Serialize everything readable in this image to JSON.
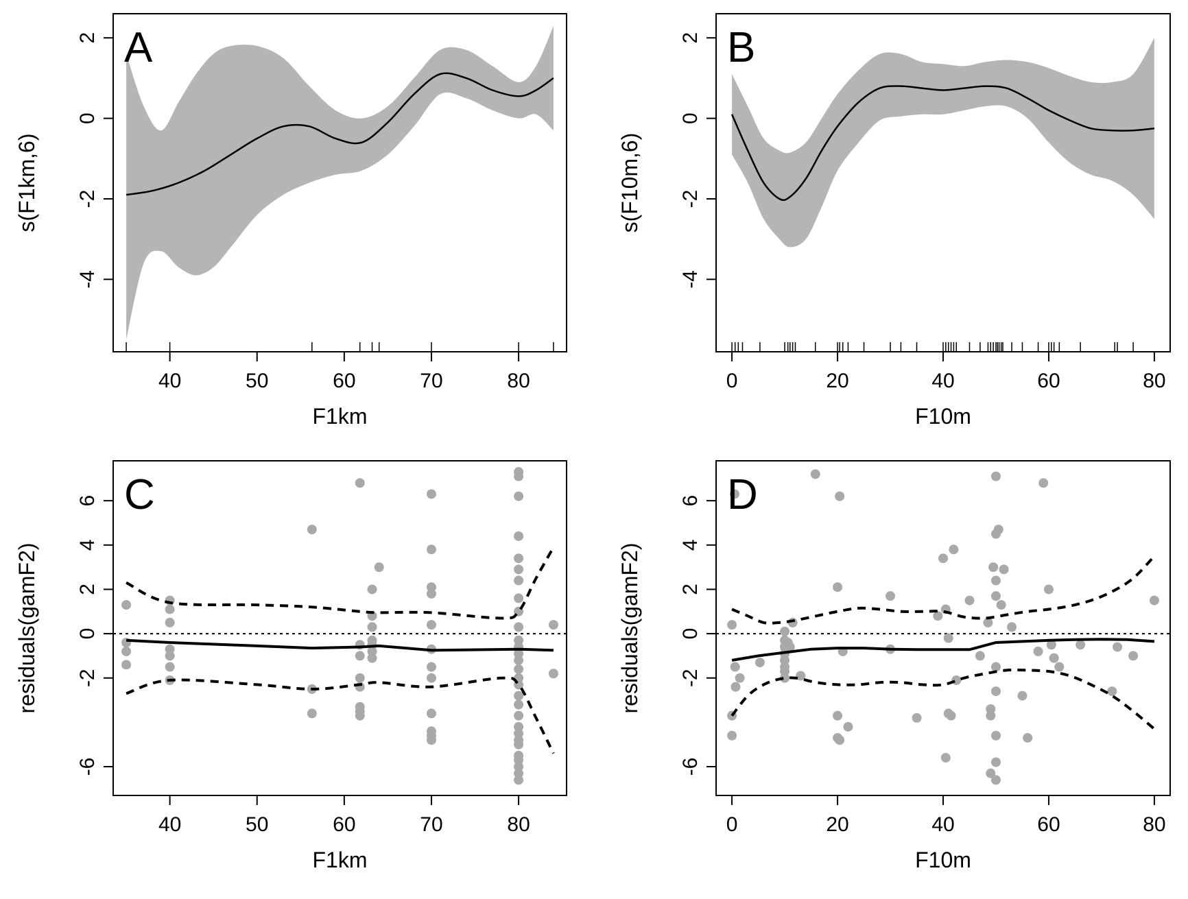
{
  "chart_data": [
    {
      "type": "line",
      "panel_label": "A",
      "xlabel": "F1km",
      "ylabel": "s(F1km,6)",
      "xlim": [
        33.5,
        85.5
      ],
      "ylim": [
        -5.8,
        2.6
      ],
      "xticks": [
        40,
        50,
        60,
        70,
        80
      ],
      "yticks": [
        -4,
        -2,
        0,
        2
      ],
      "series": [
        {
          "role": "smooth",
          "x": [
            35,
            38,
            41,
            44,
            47,
            50,
            53,
            56,
            59,
            62,
            65,
            68,
            71,
            74,
            77,
            80,
            82,
            84
          ],
          "y": [
            -1.9,
            -1.8,
            -1.6,
            -1.3,
            -0.9,
            -0.5,
            -0.2,
            -0.2,
            -0.5,
            -0.6,
            -0.1,
            0.6,
            1.1,
            1.0,
            0.7,
            0.55,
            0.7,
            1.0
          ]
        },
        {
          "role": "upper-band",
          "x": [
            35,
            37,
            39,
            41,
            43,
            45,
            47,
            50,
            53,
            56,
            59,
            62,
            65,
            68,
            71,
            74,
            77,
            80,
            82,
            84
          ],
          "y": [
            1.6,
            0.3,
            -0.3,
            0.4,
            1.1,
            1.6,
            1.8,
            1.8,
            1.5,
            0.8,
            0.2,
            0.0,
            0.3,
            1.0,
            1.7,
            1.7,
            1.3,
            0.9,
            1.3,
            2.3
          ]
        },
        {
          "role": "lower-band",
          "x": [
            35,
            37,
            39,
            41,
            43,
            45,
            47,
            50,
            53,
            56,
            59,
            62,
            65,
            68,
            71,
            74,
            77,
            80,
            82,
            84
          ],
          "y": [
            -5.5,
            -3.6,
            -3.3,
            -3.7,
            -3.9,
            -3.7,
            -3.2,
            -2.4,
            -1.9,
            -1.6,
            -1.4,
            -1.3,
            -0.9,
            -0.2,
            0.6,
            0.5,
            0.2,
            0.0,
            0.1,
            -0.3
          ]
        }
      ],
      "rug": [
        35,
        40,
        56.3,
        61.8,
        63.2,
        64.0,
        70,
        80,
        84
      ]
    },
    {
      "type": "line",
      "panel_label": "B",
      "xlabel": "F10m",
      "ylabel": "s(F10m,6)",
      "xlim": [
        -3,
        83
      ],
      "ylim": [
        -5.8,
        2.6
      ],
      "xticks": [
        0,
        20,
        40,
        60,
        80
      ],
      "yticks": [
        -4,
        -2,
        0,
        2
      ],
      "series": [
        {
          "role": "smooth",
          "x": [
            0,
            3,
            6,
            9,
            11,
            14,
            17,
            20,
            24,
            28,
            32,
            36,
            40,
            44,
            48,
            52,
            56,
            60,
            64,
            68,
            72,
            76,
            80
          ],
          "y": [
            0.1,
            -0.8,
            -1.6,
            -2.0,
            -1.95,
            -1.5,
            -0.8,
            -0.2,
            0.4,
            0.75,
            0.8,
            0.75,
            0.7,
            0.75,
            0.8,
            0.75,
            0.5,
            0.2,
            -0.05,
            -0.25,
            -0.3,
            -0.3,
            -0.25
          ]
        },
        {
          "role": "upper-band",
          "x": [
            0,
            3,
            6,
            9,
            11,
            14,
            17,
            20,
            24,
            28,
            32,
            36,
            40,
            44,
            48,
            52,
            56,
            60,
            64,
            68,
            72,
            76,
            80
          ],
          "y": [
            1.1,
            0.3,
            -0.5,
            -0.8,
            -0.85,
            -0.6,
            0.0,
            0.6,
            1.2,
            1.6,
            1.6,
            1.4,
            1.35,
            1.3,
            1.4,
            1.45,
            1.4,
            1.25,
            1.05,
            0.9,
            0.9,
            1.1,
            2.0
          ]
        },
        {
          "role": "lower-band",
          "x": [
            0,
            3,
            6,
            9,
            11,
            14,
            17,
            20,
            24,
            28,
            32,
            36,
            40,
            44,
            48,
            52,
            56,
            60,
            64,
            68,
            72,
            76,
            80
          ],
          "y": [
            -0.9,
            -1.6,
            -2.5,
            -3.0,
            -3.2,
            -3.0,
            -2.2,
            -1.3,
            -0.6,
            -0.05,
            0.05,
            0.1,
            0.1,
            0.2,
            0.3,
            0.3,
            0.0,
            -0.6,
            -1.1,
            -1.4,
            -1.55,
            -1.9,
            -2.5
          ]
        }
      ],
      "rug": [
        0,
        0.6,
        1.2,
        2,
        5.3,
        10,
        10.6,
        11,
        11.5,
        12,
        15.8,
        20,
        20.4,
        21,
        22,
        25,
        30,
        32,
        35,
        40,
        40.5,
        41,
        41.5,
        42,
        42.5,
        45,
        47,
        48.5,
        49,
        49.5,
        50,
        50.3,
        50.6,
        51,
        51.3,
        53,
        55,
        58,
        60,
        60.5,
        61,
        62,
        66,
        72.5,
        73,
        76
      ]
    },
    {
      "type": "scatter",
      "panel_label": "C",
      "xlabel": "F1km",
      "ylabel": "residuals(gamF2)",
      "xlim": [
        33.5,
        85.5
      ],
      "ylim": [
        -7.3,
        7.8
      ],
      "xticks": [
        40,
        50,
        60,
        70,
        80
      ],
      "yticks": [
        -6,
        -2,
        0,
        2,
        4,
        6
      ],
      "points": [
        [
          35,
          1.3
        ],
        [
          35,
          -0.4
        ],
        [
          35,
          -0.8
        ],
        [
          35,
          -1.4
        ],
        [
          40,
          1.5
        ],
        [
          40,
          1.1
        ],
        [
          40,
          0.5
        ],
        [
          40,
          -0.7
        ],
        [
          40,
          -1.0
        ],
        [
          40,
          -1.5
        ],
        [
          40,
          -2.1
        ],
        [
          56.3,
          4.7
        ],
        [
          56.3,
          -2.5
        ],
        [
          56.3,
          -3.6
        ],
        [
          61.8,
          6.8
        ],
        [
          61.8,
          -0.5
        ],
        [
          61.8,
          -1.0
        ],
        [
          61.8,
          -2.0
        ],
        [
          61.8,
          -2.4
        ],
        [
          61.8,
          -3.3
        ],
        [
          61.8,
          -3.5
        ],
        [
          61.8,
          -3.7
        ],
        [
          63.2,
          2.0
        ],
        [
          63.2,
          0.8
        ],
        [
          63.2,
          0.3
        ],
        [
          63.2,
          -0.3
        ],
        [
          63.2,
          -0.5
        ],
        [
          63.2,
          -0.8
        ],
        [
          63.2,
          -1.1
        ],
        [
          64.0,
          3.0
        ],
        [
          70,
          6.3
        ],
        [
          70,
          3.8
        ],
        [
          70,
          2.1
        ],
        [
          70,
          1.8
        ],
        [
          70,
          0.4
        ],
        [
          70,
          -0.7
        ],
        [
          70,
          -1.5
        ],
        [
          70,
          -2.0
        ],
        [
          70,
          -3.6
        ],
        [
          70,
          -4.4
        ],
        [
          70,
          -4.6
        ],
        [
          70,
          -4.8
        ],
        [
          80,
          7.3
        ],
        [
          80,
          7.1
        ],
        [
          80,
          6.2
        ],
        [
          80,
          4.4
        ],
        [
          80,
          3.4
        ],
        [
          80,
          2.9
        ],
        [
          80,
          2.4
        ],
        [
          80,
          1.6
        ],
        [
          80,
          1.0
        ],
        [
          80,
          0.3
        ],
        [
          80,
          -0.3
        ],
        [
          80,
          -0.6
        ],
        [
          80,
          -0.9
        ],
        [
          80,
          -1.2
        ],
        [
          80,
          -1.6
        ],
        [
          80,
          -2.0
        ],
        [
          80,
          -2.3
        ],
        [
          80,
          -2.8
        ],
        [
          80,
          -3.2
        ],
        [
          80,
          -3.7
        ],
        [
          80,
          -4.2
        ],
        [
          80,
          -4.5
        ],
        [
          80,
          -4.8
        ],
        [
          80,
          -5.0
        ],
        [
          80,
          -5.5
        ],
        [
          80,
          -5.7
        ],
        [
          80,
          -6.0
        ],
        [
          80,
          -6.3
        ],
        [
          80,
          -6.6
        ],
        [
          84,
          0.4
        ],
        [
          84,
          -1.8
        ]
      ],
      "series": [
        {
          "role": "fit",
          "style": "solid",
          "x": [
            35,
            40,
            50,
            56.3,
            61.8,
            64,
            70,
            80,
            84
          ],
          "y": [
            -0.3,
            -0.4,
            -0.55,
            -0.65,
            -0.6,
            -0.55,
            -0.75,
            -0.7,
            -0.75
          ]
        },
        {
          "role": "upper-ci",
          "style": "dashed",
          "x": [
            35,
            40,
            50,
            56.3,
            61.8,
            64,
            70,
            78,
            80,
            82,
            84
          ],
          "y": [
            2.3,
            1.4,
            1.3,
            1.2,
            1.0,
            0.95,
            0.95,
            0.7,
            1.0,
            2.5,
            3.9
          ]
        },
        {
          "role": "lower-ci",
          "style": "dashed",
          "x": [
            35,
            40,
            50,
            56.3,
            61.8,
            64,
            70,
            78,
            80,
            82,
            84
          ],
          "y": [
            -2.7,
            -2.1,
            -2.3,
            -2.5,
            -2.3,
            -2.2,
            -2.4,
            -2.0,
            -2.3,
            -3.8,
            -5.4
          ]
        }
      ],
      "reference_line": 0
    },
    {
      "type": "scatter",
      "panel_label": "D",
      "xlabel": "F10m",
      "ylabel": "residuals(gamF2)",
      "xlim": [
        -3,
        83
      ],
      "ylim": [
        -7.3,
        7.8
      ],
      "xticks": [
        0,
        20,
        40,
        60,
        80
      ],
      "yticks": [
        -6,
        -2,
        0,
        2,
        4,
        6
      ],
      "points": [
        [
          0,
          0.4
        ],
        [
          0,
          -3.7
        ],
        [
          0,
          -4.6
        ],
        [
          0.5,
          6.3
        ],
        [
          0.6,
          -1.5
        ],
        [
          0.7,
          -2.4
        ],
        [
          1.5,
          -2.0
        ],
        [
          5.3,
          -1.3
        ],
        [
          10,
          0.1
        ],
        [
          10,
          -0.3
        ],
        [
          10,
          -0.6
        ],
        [
          10,
          -0.9
        ],
        [
          10,
          -1.2
        ],
        [
          10,
          -1.5
        ],
        [
          10,
          -1.7
        ],
        [
          10,
          -2.0
        ],
        [
          10.6,
          -0.4
        ],
        [
          11,
          -0.6
        ],
        [
          11.5,
          0.5
        ],
        [
          13,
          -1.9
        ],
        [
          15.8,
          7.2
        ],
        [
          20,
          2.1
        ],
        [
          20,
          -3.7
        ],
        [
          20,
          -4.7
        ],
        [
          20.4,
          6.2
        ],
        [
          20.4,
          -4.8
        ],
        [
          21,
          -0.8
        ],
        [
          22,
          -4.2
        ],
        [
          30,
          1.7
        ],
        [
          30,
          -0.7
        ],
        [
          35,
          -3.8
        ],
        [
          39,
          0.8
        ],
        [
          40,
          3.4
        ],
        [
          40.5,
          1.1
        ],
        [
          40.5,
          -5.6
        ],
        [
          41,
          -0.2
        ],
        [
          41,
          -3.6
        ],
        [
          41.5,
          -3.7
        ],
        [
          42,
          3.8
        ],
        [
          42.5,
          -2.1
        ],
        [
          45,
          1.5
        ],
        [
          47,
          -1.0
        ],
        [
          48.5,
          0.5
        ],
        [
          49,
          -3.4
        ],
        [
          49,
          -3.7
        ],
        [
          49,
          -6.3
        ],
        [
          49.5,
          3.0
        ],
        [
          50,
          7.1
        ],
        [
          50,
          4.5
        ],
        [
          50,
          2.4
        ],
        [
          50,
          1.7
        ],
        [
          50,
          -1.5
        ],
        [
          50,
          -2.6
        ],
        [
          50,
          -4.6
        ],
        [
          50,
          -5.8
        ],
        [
          50,
          -6.6
        ],
        [
          50.5,
          4.7
        ],
        [
          51,
          1.3
        ],
        [
          51.5,
          2.9
        ],
        [
          53,
          0.3
        ],
        [
          55,
          -2.8
        ],
        [
          56,
          -4.7
        ],
        [
          58,
          -0.8
        ],
        [
          59,
          6.8
        ],
        [
          60,
          2.0
        ],
        [
          60.5,
          -0.5
        ],
        [
          61,
          -1.1
        ],
        [
          62,
          -1.5
        ],
        [
          66,
          -0.5
        ],
        [
          72,
          -2.6
        ],
        [
          73,
          -0.6
        ],
        [
          76,
          -1.0
        ],
        [
          80,
          1.5
        ]
      ],
      "series": [
        {
          "role": "fit",
          "style": "solid",
          "x": [
            0,
            5,
            10,
            15,
            20,
            25,
            30,
            35,
            40,
            45,
            50,
            55,
            60,
            65,
            70,
            75,
            80
          ],
          "y": [
            -1.2,
            -1.0,
            -0.85,
            -0.7,
            -0.65,
            -0.65,
            -0.7,
            -0.72,
            -0.72,
            -0.72,
            -0.4,
            -0.35,
            -0.3,
            -0.27,
            -0.25,
            -0.27,
            -0.35
          ]
        },
        {
          "role": "upper-ci",
          "style": "dashed",
          "x": [
            0,
            3,
            6,
            9,
            12,
            16,
            20,
            24,
            28,
            32,
            36,
            40,
            44,
            48,
            52,
            56,
            60,
            64,
            68,
            72,
            76,
            80
          ],
          "y": [
            1.1,
            0.8,
            0.5,
            0.5,
            0.6,
            0.8,
            1.0,
            1.15,
            1.1,
            1.0,
            1.0,
            1.0,
            0.75,
            0.7,
            0.85,
            1.0,
            1.1,
            1.25,
            1.5,
            1.9,
            2.5,
            3.5
          ]
        },
        {
          "role": "lower-ci",
          "style": "dashed",
          "x": [
            0,
            3,
            6,
            9,
            12,
            16,
            20,
            24,
            28,
            32,
            36,
            40,
            44,
            48,
            52,
            56,
            60,
            64,
            68,
            72,
            76,
            80
          ],
          "y": [
            -3.7,
            -2.8,
            -2.3,
            -2.05,
            -2.0,
            -2.2,
            -2.3,
            -2.3,
            -2.2,
            -2.2,
            -2.3,
            -2.3,
            -2.0,
            -1.8,
            -1.65,
            -1.65,
            -1.7,
            -1.9,
            -2.3,
            -2.8,
            -3.5,
            -4.3
          ]
        }
      ],
      "reference_line": 0
    }
  ]
}
